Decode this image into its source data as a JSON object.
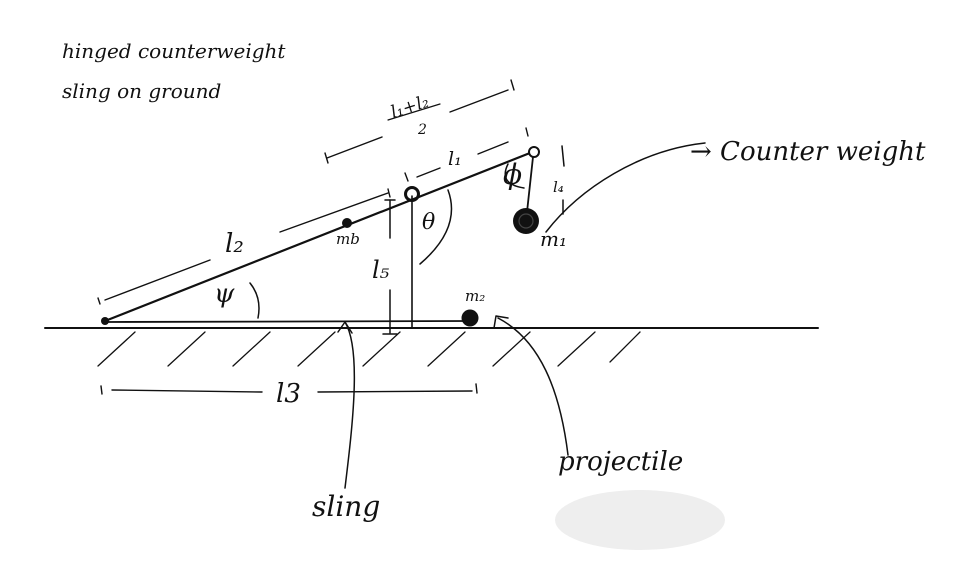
{
  "notes": {
    "line1": "hinged counterweight",
    "line2": "sling on ground"
  },
  "labels": {
    "l1_plus_l2": "l₁+l₂",
    "over_two": "2",
    "l1": "l₁",
    "l2": "l₂",
    "l3": "l3",
    "l4": "l₄",
    "l5": "l₅",
    "mb": "mb",
    "m1": "m₁",
    "m2": "m₂",
    "phi": "ϕ",
    "theta": "θ",
    "psi": "ψ",
    "counterweight": "→ Counter weight",
    "sling": "sling",
    "projectile": "projectile"
  }
}
